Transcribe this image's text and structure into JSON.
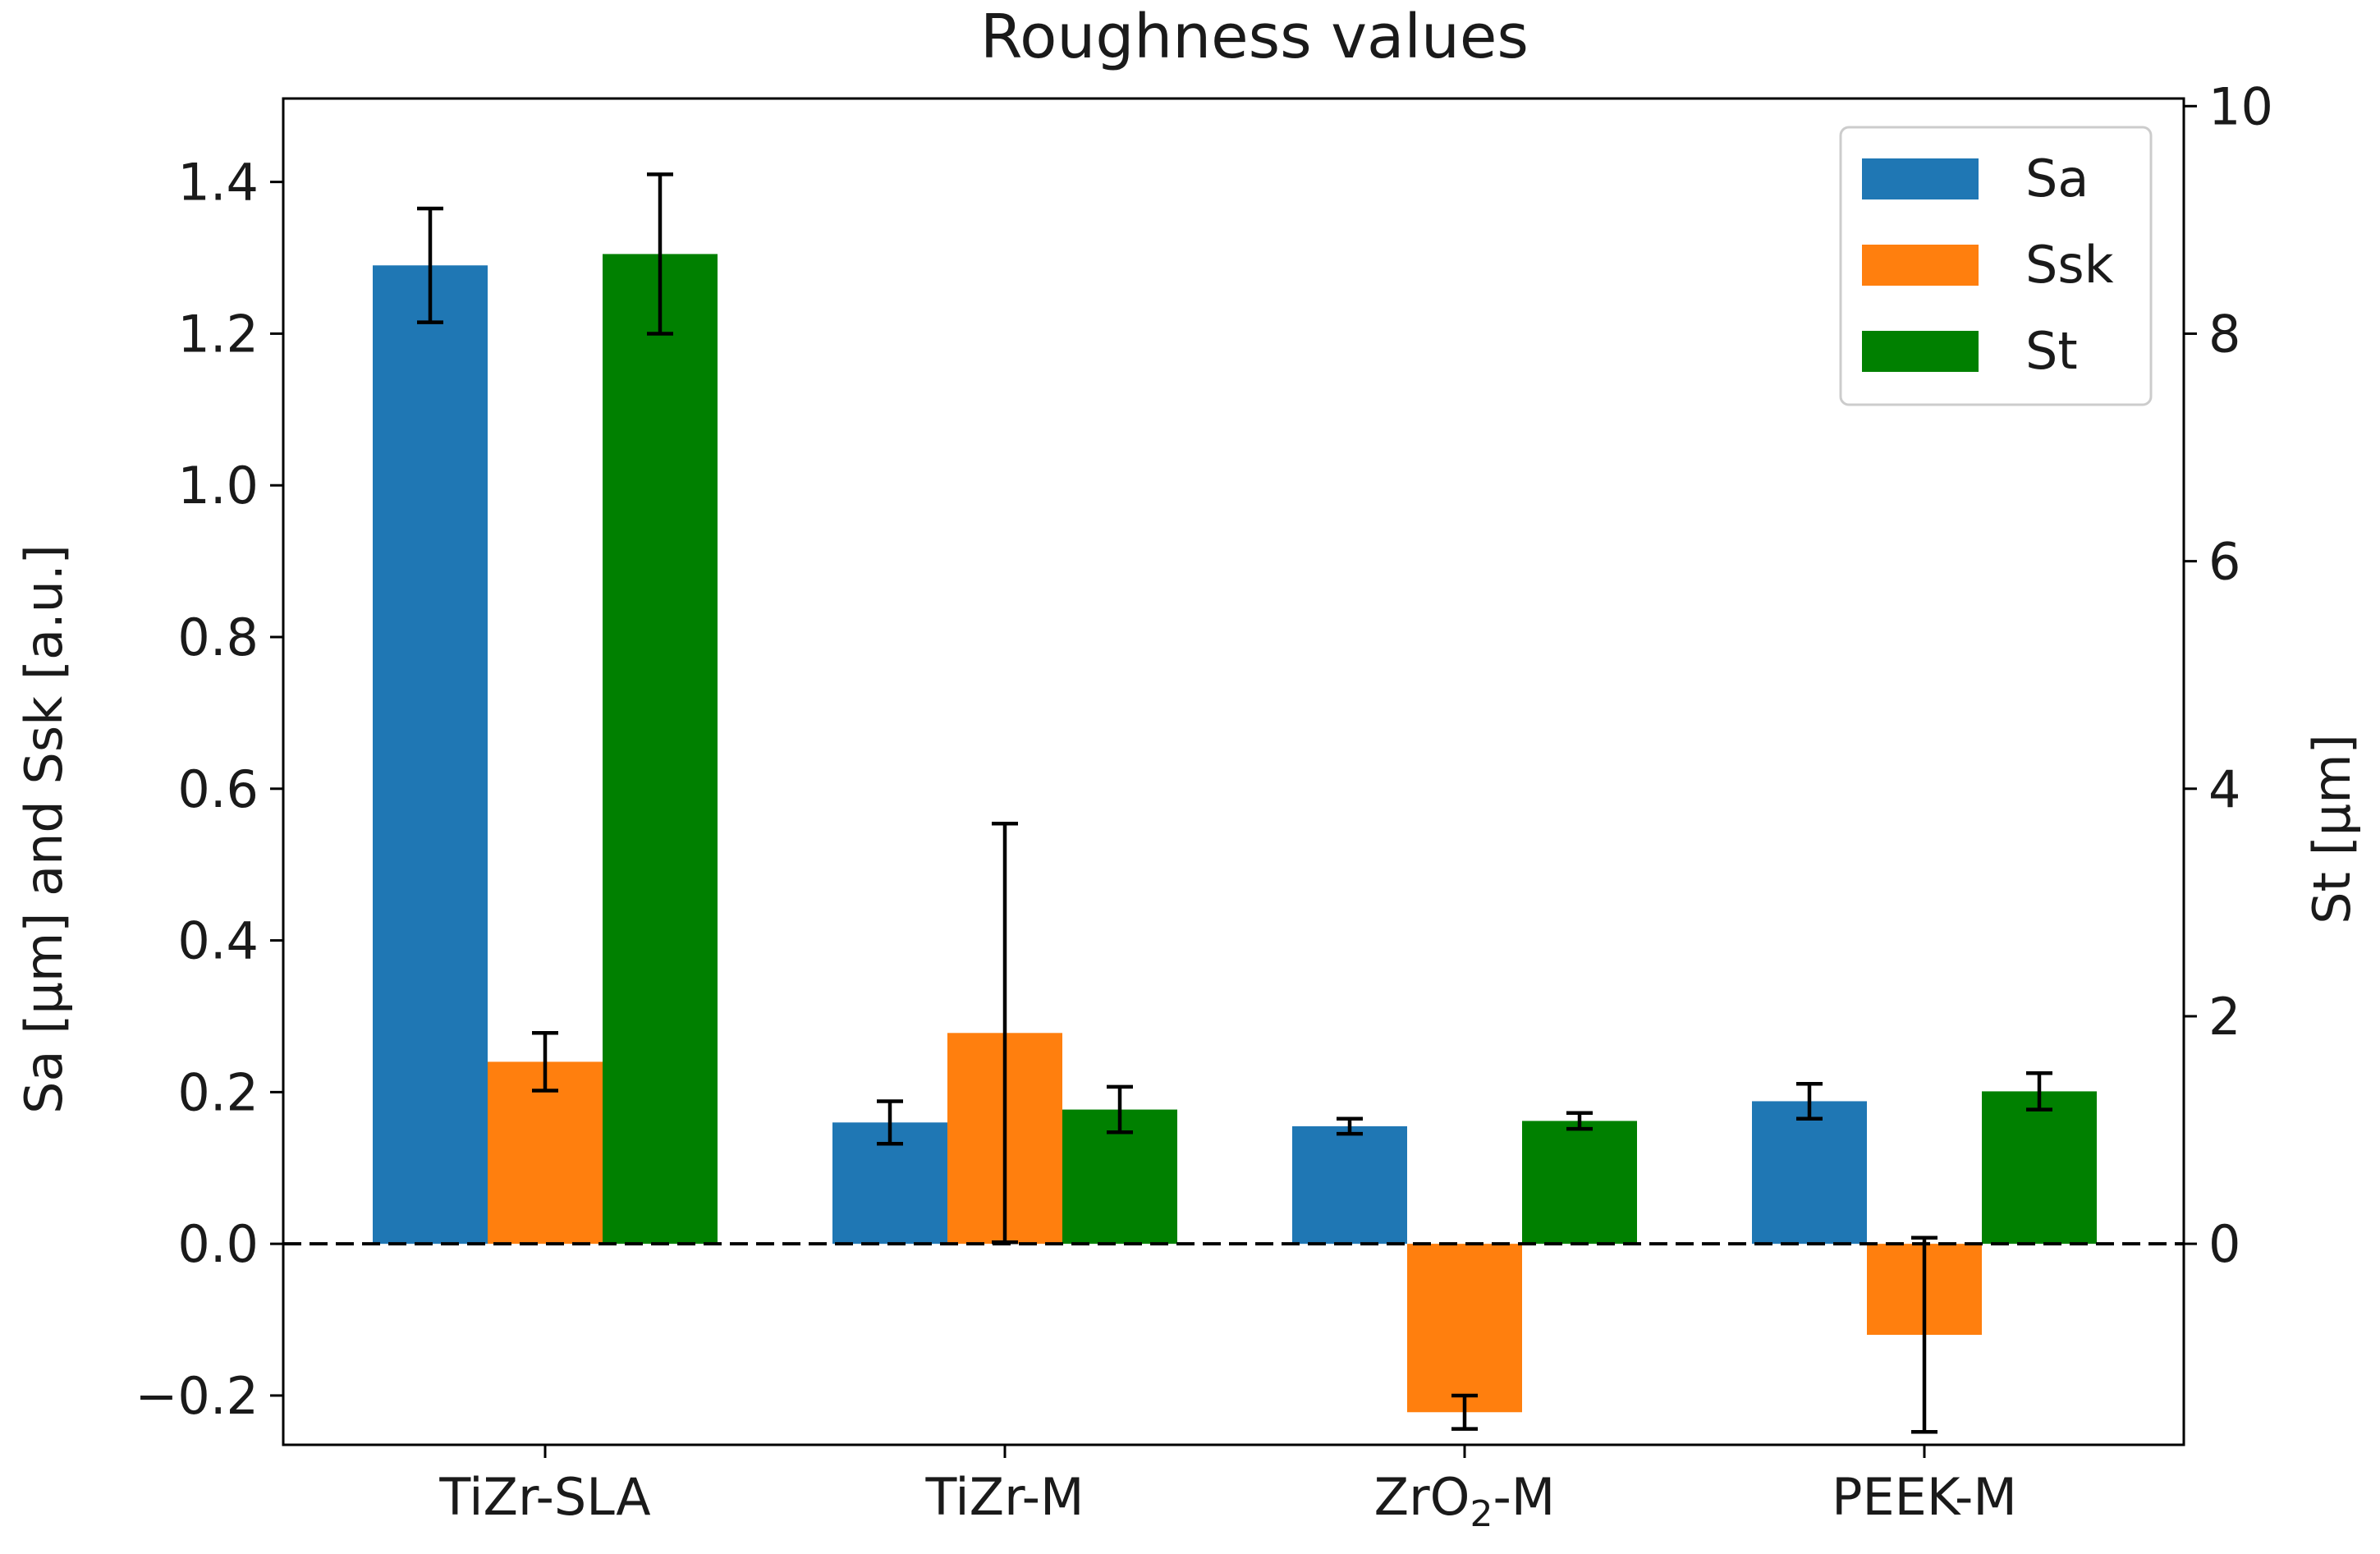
{
  "chart_data": {
    "type": "bar",
    "title": "Roughness values",
    "categories": [
      {
        "label": "TiZr-SLA",
        "main": "TiZr-SLA",
        "sub": "",
        "suffix": ""
      },
      {
        "label": "TiZr-M",
        "main": "TiZr-M",
        "sub": "",
        "suffix": ""
      },
      {
        "label": "ZrO2-M",
        "main": "ZrO",
        "sub": "2",
        "suffix": "-M"
      },
      {
        "label": "PEEK-M",
        "main": "PEEK-M",
        "sub": "",
        "suffix": ""
      }
    ],
    "ylabel_left": "Sa [µm] and Ssk [a.u.]",
    "ylabel_right": "St [µm]",
    "ylim_left": [
      -0.265,
      1.51
    ],
    "ylim_right": [
      -1.767,
      10.067
    ],
    "yticks_left": [
      -0.2,
      0.0,
      0.2,
      0.4,
      0.6,
      0.8,
      1.0,
      1.2,
      1.4
    ],
    "yticks_left_labels": [
      "−0.2",
      "0.0",
      "0.2",
      "0.4",
      "0.6",
      "0.8",
      "1.0",
      "1.2",
      "1.4"
    ],
    "yticks_right": [
      0,
      2,
      4,
      6,
      8,
      10
    ],
    "yticks_right_labels": [
      "0",
      "2",
      "4",
      "6",
      "8",
      "10"
    ],
    "zero_line": "dashed",
    "legend": {
      "placement": "top-right"
    },
    "series": [
      {
        "name": "Sa",
        "color": "#1f77b4",
        "axis": "left",
        "values": [
          1.29,
          0.16,
          0.155,
          0.188
        ],
        "errors": [
          0.075,
          0.028,
          0.01,
          0.023
        ]
      },
      {
        "name": "Ssk",
        "color": "#ff7f0e",
        "axis": "left",
        "values": [
          0.24,
          0.278,
          -0.222,
          -0.12
        ],
        "errors": [
          0.038,
          0.276,
          0.022,
          0.128
        ]
      },
      {
        "name": "St",
        "color": "#008000",
        "axis": "right",
        "values": [
          8.7,
          1.18,
          1.08,
          1.34
        ],
        "errors": [
          0.7,
          0.2,
          0.07,
          0.16
        ]
      }
    ]
  }
}
